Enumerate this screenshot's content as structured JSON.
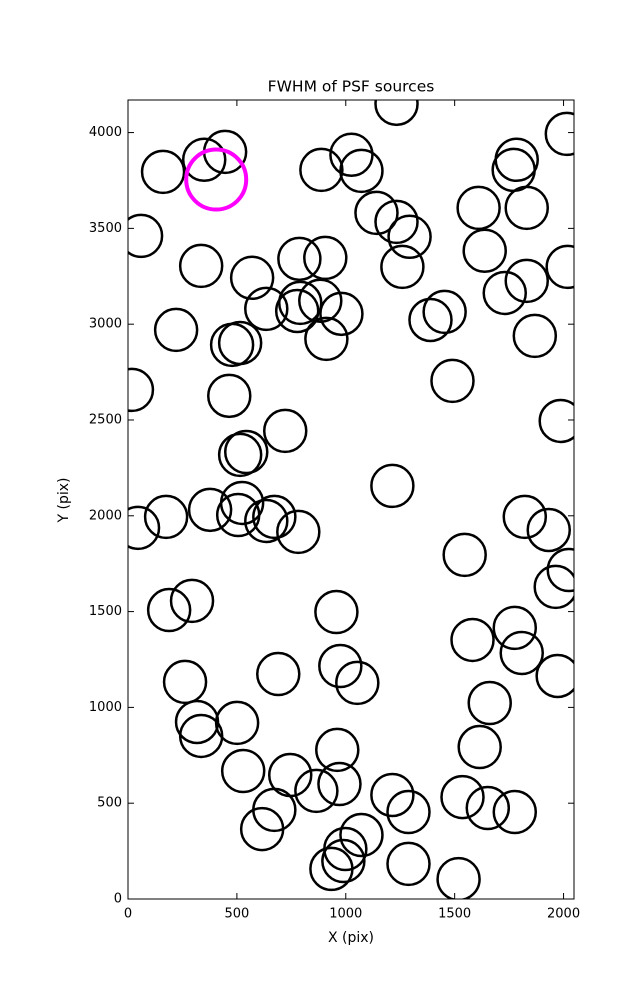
{
  "chart_data": {
    "type": "scatter",
    "title": "FWHM of PSF sources",
    "xlabel": "X (pix)",
    "ylabel": "Y (pix)",
    "xlim": [
      0,
      2048
    ],
    "ylim": [
      0,
      4170
    ],
    "xticks": [
      0,
      500,
      1000,
      1500,
      2000
    ],
    "yticks": [
      0,
      500,
      1000,
      1500,
      2000,
      2500,
      3000,
      3500,
      4000
    ],
    "grid": false,
    "series": [
      {
        "color": "#000000",
        "x": [
          161,
          350,
          446,
          60,
          336,
          570,
          635,
          221,
          478,
          515,
          465,
          18,
          722,
          515,
          543,
          46,
          175,
          377,
          524,
          506,
          635,
          672,
          782,
          294,
          189,
          262,
          317,
          336,
          501,
          529,
          690,
          616,
          672,
          745,
          865,
          971,
          934,
          989,
          998,
          1072,
          961,
          975,
          1053,
          957,
          1214,
          888,
          1026,
          1072,
          787,
          906,
          791,
          777,
          883,
          980,
          911,
          1141,
          1233,
          1293,
          1260,
          1233,
          1389,
          1454,
          1490,
          1546,
          1582,
          1661,
          1615,
          1214,
          1288,
          1288,
          1536,
          1652,
          1776,
          1518,
          1776,
          1808,
          1973,
          1964,
          2024,
          1822,
          1932,
          1987,
          1868,
          1730,
          1831,
          1638,
          1610,
          1831,
          1771,
          1785,
          2015,
          2019
        ],
        "values": [
          3795,
          3858,
          3899,
          3461,
          3304,
          3242,
          3080,
          2970,
          2892,
          2902,
          2626,
          2657,
          2443,
          2318,
          2333,
          1937,
          1994,
          2031,
          2067,
          2004,
          1973,
          1994,
          1916,
          1556,
          1508,
          1133,
          924,
          851,
          919,
          668,
          1174,
          365,
          465,
          647,
          564,
          600,
          157,
          198,
          261,
          334,
          778,
          1216,
          1128,
          1498,
          2156,
          3805,
          3884,
          3800,
          3341,
          3346,
          3111,
          3069,
          3122,
          3054,
          2923,
          3581,
          3534,
          3456,
          3299,
          4150,
          3022,
          3064,
          2704,
          1796,
          1352,
          1023,
          793,
          543,
          454,
          183,
          532,
          475,
          454,
          104,
          1415,
          1284,
          1164,
          1629,
          1717,
          1994,
          1926,
          2495,
          2939,
          3163,
          3226,
          3383,
          3607,
          3607,
          3805,
          3858,
          3993,
          3299
        ]
      },
      {
        "color": "#ff00ff",
        "x": [
          405
        ],
        "values": [
          3755
        ]
      }
    ]
  }
}
